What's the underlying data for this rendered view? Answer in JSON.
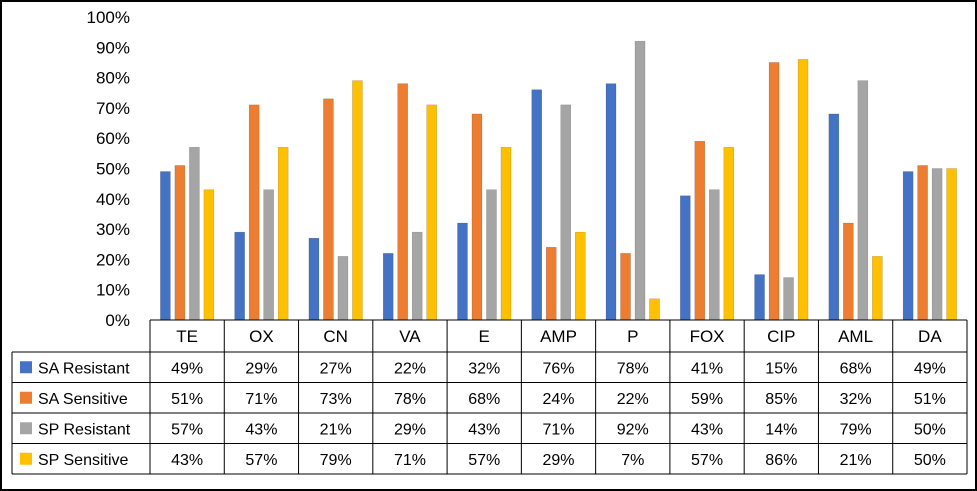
{
  "chart_data": {
    "type": "bar",
    "categories": [
      "TE",
      "OX",
      "CN",
      "VA",
      "E",
      "AMP",
      "P",
      "FOX",
      "CIP",
      "AML",
      "DA"
    ],
    "yticks": [
      "0%",
      "10%",
      "20%",
      "30%",
      "40%",
      "50%",
      "60%",
      "70%",
      "80%",
      "90%",
      "100%"
    ],
    "ylim": [
      0,
      100
    ],
    "series": [
      {
        "name": "SA Resistant",
        "color": "#4472C4",
        "values": [
          49,
          29,
          27,
          22,
          32,
          76,
          78,
          41,
          15,
          68,
          49
        ],
        "labels": [
          "49%",
          "29%",
          "27%",
          "22%",
          "32%",
          "76%",
          "78%",
          "41%",
          "15%",
          "68%",
          "49%"
        ]
      },
      {
        "name": "SA Sensitive",
        "color": "#ED7D31",
        "values": [
          51,
          71,
          73,
          78,
          68,
          24,
          22,
          59,
          85,
          32,
          51
        ],
        "labels": [
          "51%",
          "71%",
          "73%",
          "78%",
          "68%",
          "24%",
          "22%",
          "59%",
          "85%",
          "32%",
          "51%"
        ]
      },
      {
        "name": "SP Resistant",
        "color": "#A5A5A5",
        "values": [
          57,
          43,
          21,
          29,
          43,
          71,
          92,
          43,
          14,
          79,
          50
        ],
        "labels": [
          "57%",
          "43%",
          "21%",
          "29%",
          "43%",
          "71%",
          "92%",
          "43%",
          "14%",
          "79%",
          "50%"
        ]
      },
      {
        "name": "SP Sensitive",
        "color": "#FFC000",
        "values": [
          43,
          57,
          79,
          71,
          57,
          29,
          7,
          57,
          86,
          21,
          50
        ],
        "labels": [
          "43%",
          "57%",
          "79%",
          "71%",
          "57%",
          "29%",
          "7%",
          "57%",
          "86%",
          "21%",
          "50%"
        ]
      }
    ],
    "legend": "data-table"
  }
}
